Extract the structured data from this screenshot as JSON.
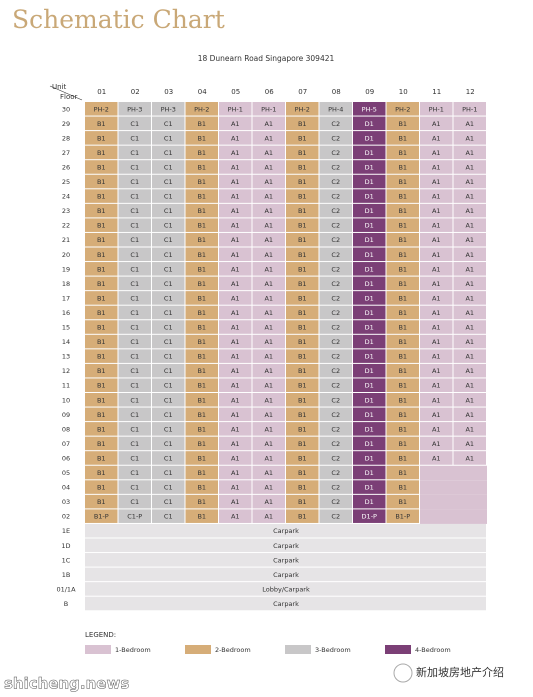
{
  "header": {
    "title": "Schematic Chart",
    "subtitle": "18 Dunearn Road Singapore 309421",
    "unit_label": "Unit",
    "floor_label": "Floor"
  },
  "table": {
    "columns": [
      {
        "label": "01",
        "color": "#d6ad78"
      },
      {
        "label": "02",
        "color": "#c8c7c8"
      },
      {
        "label": "03",
        "color": "#c8c7c8"
      },
      {
        "label": "04",
        "color": "#d6ad78"
      },
      {
        "label": "05",
        "color": "#d9c2d2"
      },
      {
        "label": "06",
        "color": "#d9c2d2"
      },
      {
        "label": "07",
        "color": "#d6ad78"
      },
      {
        "label": "08",
        "color": "#c8c7c8"
      },
      {
        "label": "09",
        "color": "#7b3f76"
      },
      {
        "label": "10",
        "color": "#d6ad78"
      },
      {
        "label": "11",
        "color": "#d9c2d2"
      },
      {
        "label": "12",
        "color": "#d9c2d2"
      }
    ],
    "rows": [
      {
        "floor": "30",
        "units": [
          "PH-2",
          "PH-3",
          "PH-3",
          "PH-2",
          "PH-1",
          "PH-1",
          "PH-2",
          "PH-4",
          "PH-5",
          "PH-2",
          "PH-1",
          "PH-1"
        ]
      },
      {
        "floor": "29",
        "units": [
          "B1",
          "C1",
          "C1",
          "B1",
          "A1",
          "A1",
          "B1",
          "C2",
          "D1",
          "B1",
          "A1",
          "A1"
        ]
      },
      {
        "floor": "28",
        "units": [
          "B1",
          "C1",
          "C1",
          "B1",
          "A1",
          "A1",
          "B1",
          "C2",
          "D1",
          "B1",
          "A1",
          "A1"
        ]
      },
      {
        "floor": "27",
        "units": [
          "B1",
          "C1",
          "C1",
          "B1",
          "A1",
          "A1",
          "B1",
          "C2",
          "D1",
          "B1",
          "A1",
          "A1"
        ]
      },
      {
        "floor": "26",
        "units": [
          "B1",
          "C1",
          "C1",
          "B1",
          "A1",
          "A1",
          "B1",
          "C2",
          "D1",
          "B1",
          "A1",
          "A1"
        ]
      },
      {
        "floor": "25",
        "units": [
          "B1",
          "C1",
          "C1",
          "B1",
          "A1",
          "A1",
          "B1",
          "C2",
          "D1",
          "B1",
          "A1",
          "A1"
        ]
      },
      {
        "floor": "24",
        "units": [
          "B1",
          "C1",
          "C1",
          "B1",
          "A1",
          "A1",
          "B1",
          "C2",
          "D1",
          "B1",
          "A1",
          "A1"
        ]
      },
      {
        "floor": "23",
        "units": [
          "B1",
          "C1",
          "C1",
          "B1",
          "A1",
          "A1",
          "B1",
          "C2",
          "D1",
          "B1",
          "A1",
          "A1"
        ]
      },
      {
        "floor": "22",
        "units": [
          "B1",
          "C1",
          "C1",
          "B1",
          "A1",
          "A1",
          "B1",
          "C2",
          "D1",
          "B1",
          "A1",
          "A1"
        ]
      },
      {
        "floor": "21",
        "units": [
          "B1",
          "C1",
          "C1",
          "B1",
          "A1",
          "A1",
          "B1",
          "C2",
          "D1",
          "B1",
          "A1",
          "A1"
        ]
      },
      {
        "floor": "20",
        "units": [
          "B1",
          "C1",
          "C1",
          "B1",
          "A1",
          "A1",
          "B1",
          "C2",
          "D1",
          "B1",
          "A1",
          "A1"
        ]
      },
      {
        "floor": "19",
        "units": [
          "B1",
          "C1",
          "C1",
          "B1",
          "A1",
          "A1",
          "B1",
          "C2",
          "D1",
          "B1",
          "A1",
          "A1"
        ]
      },
      {
        "floor": "18",
        "units": [
          "B1",
          "C1",
          "C1",
          "B1",
          "A1",
          "A1",
          "B1",
          "C2",
          "D1",
          "B1",
          "A1",
          "A1"
        ]
      },
      {
        "floor": "17",
        "units": [
          "B1",
          "C1",
          "C1",
          "B1",
          "A1",
          "A1",
          "B1",
          "C2",
          "D1",
          "B1",
          "A1",
          "A1"
        ]
      },
      {
        "floor": "16",
        "units": [
          "B1",
          "C1",
          "C1",
          "B1",
          "A1",
          "A1",
          "B1",
          "C2",
          "D1",
          "B1",
          "A1",
          "A1"
        ]
      },
      {
        "floor": "15",
        "units": [
          "B1",
          "C1",
          "C1",
          "B1",
          "A1",
          "A1",
          "B1",
          "C2",
          "D1",
          "B1",
          "A1",
          "A1"
        ]
      },
      {
        "floor": "14",
        "units": [
          "B1",
          "C1",
          "C1",
          "B1",
          "A1",
          "A1",
          "B1",
          "C2",
          "D1",
          "B1",
          "A1",
          "A1"
        ]
      },
      {
        "floor": "13",
        "units": [
          "B1",
          "C1",
          "C1",
          "B1",
          "A1",
          "A1",
          "B1",
          "C2",
          "D1",
          "B1",
          "A1",
          "A1"
        ]
      },
      {
        "floor": "12",
        "units": [
          "B1",
          "C1",
          "C1",
          "B1",
          "A1",
          "A1",
          "B1",
          "C2",
          "D1",
          "B1",
          "A1",
          "A1"
        ]
      },
      {
        "floor": "11",
        "units": [
          "B1",
          "C1",
          "C1",
          "B1",
          "A1",
          "A1",
          "B1",
          "C2",
          "D1",
          "B1",
          "A1",
          "A1"
        ]
      },
      {
        "floor": "10",
        "units": [
          "B1",
          "C1",
          "C1",
          "B1",
          "A1",
          "A1",
          "B1",
          "C2",
          "D1",
          "B1",
          "A1",
          "A1"
        ]
      },
      {
        "floor": "09",
        "units": [
          "B1",
          "C1",
          "C1",
          "B1",
          "A1",
          "A1",
          "B1",
          "C2",
          "D1",
          "B1",
          "A1",
          "A1"
        ]
      },
      {
        "floor": "08",
        "units": [
          "B1",
          "C1",
          "C1",
          "B1",
          "A1",
          "A1",
          "B1",
          "C2",
          "D1",
          "B1",
          "A1",
          "A1"
        ]
      },
      {
        "floor": "07",
        "units": [
          "B1",
          "C1",
          "C1",
          "B1",
          "A1",
          "A1",
          "B1",
          "C2",
          "D1",
          "B1",
          "A1",
          "A1"
        ]
      },
      {
        "floor": "06",
        "units": [
          "B1",
          "C1",
          "C1",
          "B1",
          "A1",
          "A1",
          "B1",
          "C2",
          "D1",
          "B1",
          "A1",
          "A1"
        ]
      },
      {
        "floor": "05",
        "units": [
          "B1",
          "C1",
          "C1",
          "B1",
          "A1",
          "A1",
          "B1",
          "C2",
          "D1",
          "B1",
          null,
          null
        ]
      },
      {
        "floor": "04",
        "units": [
          "B1",
          "C1",
          "C1",
          "B1",
          "A1",
          "A1",
          "B1",
          "C2",
          "D1",
          "B1",
          null,
          null
        ]
      },
      {
        "floor": "03",
        "units": [
          "B1",
          "C1",
          "C1",
          "B1",
          "A1",
          "A1",
          "B1",
          "C2",
          "D1",
          "B1",
          null,
          null
        ]
      },
      {
        "floor": "02",
        "units": [
          "B1-P",
          "C1-P",
          "C1",
          "B1",
          "A1",
          "A1",
          "B1",
          "C2",
          "D1-P",
          "B1-P",
          null,
          null
        ]
      }
    ],
    "shared_rows": [
      {
        "floor": "1E",
        "label": "Carpark"
      },
      {
        "floor": "1D",
        "label": "Carpark"
      },
      {
        "floor": "1C",
        "label": "Carpark"
      },
      {
        "floor": "1B",
        "label": "Carpark"
      },
      {
        "floor": "01/1A",
        "label": "Lobby/Carpark"
      },
      {
        "floor": "B",
        "label": "Carpark"
      }
    ],
    "shared_color": "#e6e4e6"
  },
  "legend": {
    "title": "LEGEND:",
    "items": [
      {
        "label": "1-Bedroom",
        "color": "#d9c2d2"
      },
      {
        "label": "2-Bedroom",
        "color": "#d6ad78"
      },
      {
        "label": "3-Bedroom",
        "color": "#c8c7c8"
      },
      {
        "label": "4-Bedroom",
        "color": "#7b3f76"
      }
    ]
  },
  "footer": {
    "watermark": "shicheng.news",
    "account": "新加坡房地产介绍"
  }
}
